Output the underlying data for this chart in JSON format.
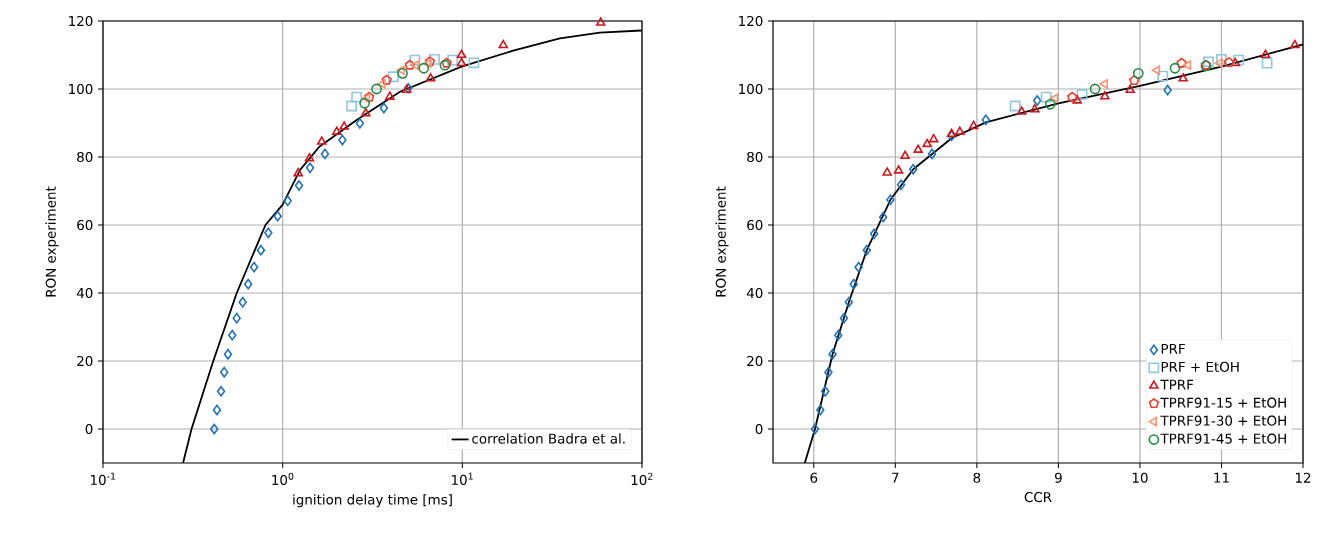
{
  "chart_data": [
    {
      "type": "scatter",
      "xlabel": "ignition delay time [ms]",
      "ylabel": "RON experiment",
      "log": "x",
      "grid": true,
      "legend": "bottom right",
      "xlim": [
        0.1,
        100
      ],
      "ylim": [
        -10,
        120
      ],
      "xticks": [
        {
          "value": 0.1,
          "label": "10$^{-1}$"
        },
        {
          "value": 1,
          "label": "10$^{0}$"
        },
        {
          "value": 10,
          "label": "10$^{1}$"
        },
        {
          "value": 100,
          "label": "10$^{2}$"
        }
      ],
      "yticks": [
        0,
        20,
        40,
        60,
        80,
        100,
        120
      ],
      "series": [
        {
          "type": "line",
          "name": "correlation Badra et al.",
          "color": "#000000",
          "x": [
            0.279,
            0.311,
            0.411,
            0.555,
            0.802,
            1.0,
            1.25,
            1.6,
            2.58,
            4.5,
            9.9,
            19.2,
            34.9,
            58.3,
            99.6
          ],
          "values": [
            -10,
            0,
            20,
            40,
            60,
            66,
            76.2,
            83,
            90.9,
            99.2,
            106.6,
            111.3,
            114.9,
            116.6,
            117.2
          ]
        },
        {
          "marker": "diamond",
          "color": "#2171b5",
          "x": [
            0.416,
            0.431,
            0.454,
            0.473,
            0.496,
            0.524,
            0.555,
            0.599,
            0.643,
            0.693,
            0.757,
            0.832,
            0.938,
            1.066,
            1.233,
            1.42,
            1.72,
            2.15,
            2.69,
            3.66,
            5.0
          ],
          "values": [
            0,
            5.6,
            11.1,
            16.7,
            22,
            27.6,
            32.6,
            37.3,
            42.6,
            47.6,
            52.6,
            57.7,
            62.6,
            67.1,
            71.6,
            76.8,
            80.9,
            85,
            89.9,
            94.4,
            100.2
          ]
        },
        {
          "marker": "square",
          "color": "#92c5de",
          "x": [
            2.42,
            2.58,
            4.13,
            5.45,
            7.0,
            8.83,
            11.6
          ],
          "values": [
            95,
            97.6,
            103.6,
            108.5,
            108.7,
            108.5,
            107.7
          ]
        },
        {
          "marker": "triangle",
          "color": "#cb181d",
          "x": [
            1.22,
            1.41,
            1.65,
            2.0,
            2.2,
            2.9,
            3.95,
            4.9,
            6.66,
            9.9,
            9.9,
            16.9,
            58.9
          ],
          "values": [
            75.2,
            79.6,
            84.5,
            87.4,
            88.9,
            92.8,
            97.7,
            99.7,
            103.1,
            110,
            107.6,
            112.9,
            119.5
          ]
        },
        {
          "color": "#ef3b2c",
          "x": [
            3.03,
            3.79,
            5.1,
            6.6,
            8.18
          ],
          "values": [
            97.6,
            102.6,
            107,
            108,
            107.6
          ]
        },
        {
          "color": "#fc9272",
          "x": [
            2.95,
            3.6,
            4.6,
            5.5,
            6.5
          ],
          "values": [
            97.3,
            101.5,
            105.5,
            107,
            107.6
          ]
        },
        {
          "marker": "circle",
          "color": "#238b45",
          "x": [
            2.86,
            3.33,
            4.65,
            6.1,
            8.0
          ],
          "values": [
            95.8,
            100,
            104.6,
            106.1,
            107
          ]
        }
      ]
    },
    {
      "type": "scatter",
      "xlabel": "CCR",
      "ylabel": "RON experiment",
      "grid": true,
      "legend": "bottom right",
      "xlim": [
        5.5,
        12
      ],
      "ylim": [
        -10,
        120
      ],
      "xticks": [
        6,
        7,
        8,
        9,
        10,
        11,
        12
      ],
      "yticks": [
        0,
        20,
        40,
        60,
        80,
        100,
        120
      ],
      "series": [
        {
          "type": "line",
          "color": "#000000",
          "x": [
            5.89,
            6.015,
            6.23,
            6.43,
            6.65,
            6.94,
            7.22,
            7.69,
            8.11,
            9.0,
            10.0,
            11.0,
            12.0
          ],
          "values": [
            -10,
            0,
            22,
            37.3,
            52.6,
            67.4,
            76.4,
            85.5,
            90.2,
            95.8,
            100.9,
            106.6,
            113.1
          ]
        },
        {
          "name": "PRF",
          "marker": "diamond",
          "color": "#2171b5",
          "x": [
            6.015,
            6.08,
            6.14,
            6.18,
            6.23,
            6.3,
            6.37,
            6.43,
            6.49,
            6.55,
            6.65,
            6.74,
            6.85,
            6.94,
            7.07,
            7.22,
            7.45,
            7.69,
            8.11,
            8.74,
            10.34
          ],
          "values": [
            0,
            5.6,
            11.1,
            16.7,
            22,
            27.6,
            32.6,
            37.3,
            42.6,
            47.6,
            52.6,
            57.4,
            62.3,
            67.4,
            71.8,
            76.4,
            80.9,
            86.2,
            90.9,
            96.6,
            99.7
          ]
        },
        {
          "name": "PRF + EtOH",
          "marker": "square",
          "color": "#92c5de",
          "x": [
            8.47,
            8.85,
            9.29,
            10.28,
            10.84,
            11.0,
            11.21,
            11.56
          ],
          "values": [
            95,
            97.6,
            98.4,
            103.8,
            108,
            108.7,
            108.5,
            107.6
          ]
        },
        {
          "name": "TPRF",
          "marker": "triangle",
          "color": "#cb181d",
          "x": [
            6.9,
            7.04,
            7.12,
            7.28,
            7.39,
            7.47,
            7.69,
            7.79,
            7.96,
            8.55,
            8.71,
            9.23,
            9.57,
            9.88,
            10.53,
            11.17,
            11.54,
            11.9
          ],
          "values": [
            75.4,
            76,
            80.3,
            82.1,
            83.8,
            85.2,
            86.8,
            87.4,
            89.1,
            93.3,
            94,
            96.6,
            97.8,
            99.7,
            103.1,
            107.6,
            110,
            112.9
          ]
        },
        {
          "name": "TPRF91-15 + EtOH",
          "color": "#ef3b2c",
          "x": [
            9.17,
            9.93,
            10.51,
            10.81,
            11.09
          ],
          "values": [
            97.6,
            102.5,
            107.6,
            107,
            107.8
          ]
        },
        {
          "name": "TPRF91-30 + EtOH",
          "color": "#fc9272",
          "x": [
            8.96,
            9.57,
            10.21,
            10.59,
            10.98
          ],
          "values": [
            97.3,
            101.5,
            105.5,
            107,
            107.6
          ]
        },
        {
          "name": "TPRF91-45 + EtOH",
          "marker": "circle",
          "color": "#238b45",
          "x": [
            8.9,
            9.45,
            9.98,
            10.43,
            10.81
          ],
          "values": [
            95.5,
            100,
            104.6,
            106.1,
            106.8
          ]
        }
      ]
    }
  ]
}
